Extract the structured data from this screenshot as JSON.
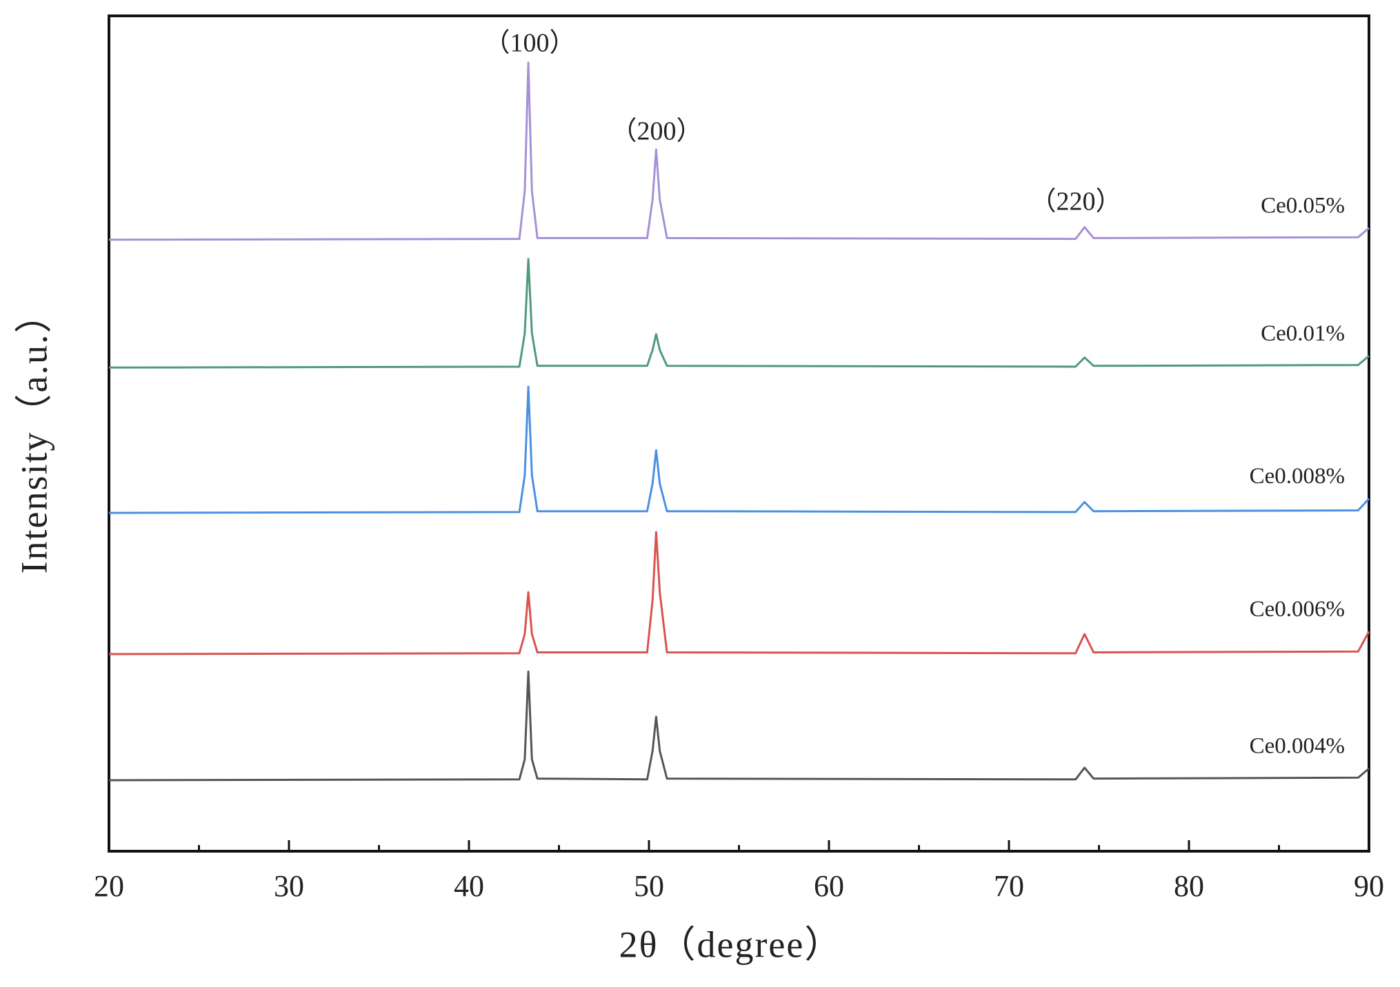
{
  "chart_data": {
    "type": "line",
    "xlabel": "2θ（degree）",
    "ylabel": "Intensity（a.u.）",
    "x": [
      20,
      42.8,
      43.1,
      43.3,
      43.5,
      43.8,
      49.9,
      50.2,
      50.4,
      50.6,
      51.0,
      73.7,
      74.2,
      74.7,
      89.4,
      90
    ],
    "series": [
      {
        "name": "Ce0.004%",
        "color": "#555555",
        "values": [
          8.5,
          8.6,
          11,
          21.5,
          11,
          8.7,
          8.6,
          12,
          16.1,
          12,
          8.7,
          8.6,
          10.0,
          8.7,
          8.8,
          9.9
        ]
      },
      {
        "name": "Ce0.006%",
        "color": "#d9534f",
        "values": [
          23.6,
          23.7,
          26,
          31.0,
          26,
          23.8,
          23.8,
          30,
          38.2,
          31,
          23.8,
          23.7,
          26.0,
          23.8,
          23.9,
          26.3
        ]
      },
      {
        "name": "Ce0.008%",
        "color": "#4a90e2",
        "values": [
          40.5,
          40.6,
          45,
          55.6,
          45,
          40.7,
          40.7,
          44,
          48.0,
          44,
          40.7,
          40.6,
          41.8,
          40.7,
          40.8,
          42.2
        ]
      },
      {
        "name": "Ce0.01%",
        "color": "#4f9a78",
        "values": [
          57.9,
          58.0,
          62,
          70.9,
          62,
          58.1,
          58.1,
          60,
          61.9,
          60,
          58.1,
          58.0,
          59.1,
          58.1,
          58.2,
          59.3
        ]
      },
      {
        "name": "Ce0.05%",
        "color": "#a68fd8",
        "values": [
          73.2,
          73.3,
          79,
          94.4,
          79,
          73.4,
          73.4,
          78,
          84.0,
          78,
          73.4,
          73.3,
          74.7,
          73.4,
          73.5,
          74.6
        ]
      }
    ],
    "annotations": [
      "（100）",
      "（200）",
      "（220）"
    ],
    "xlim": [
      20,
      90
    ],
    "xticks": [
      20,
      30,
      40,
      50,
      60,
      70,
      80,
      90
    ],
    "xminorticks": [
      25,
      35,
      45,
      55,
      65,
      75,
      85
    ],
    "ylim": [
      0,
      100
    ]
  }
}
